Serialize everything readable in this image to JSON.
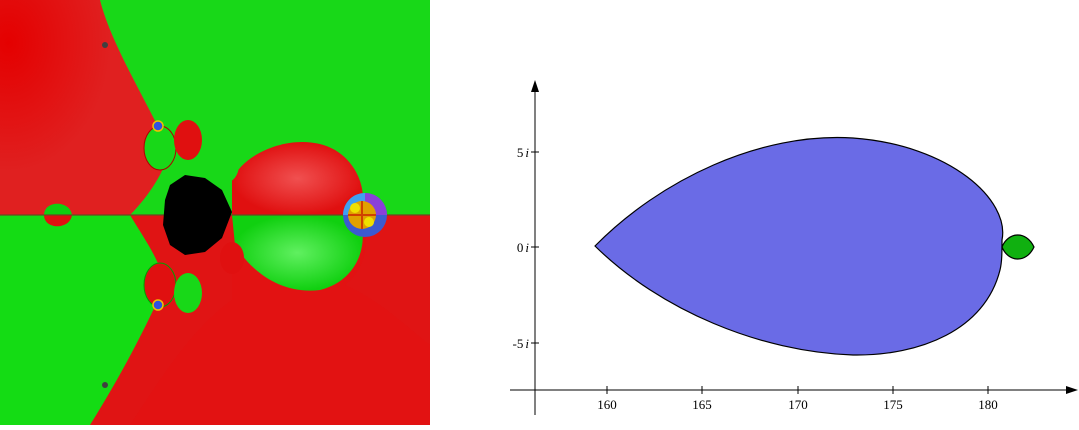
{
  "fractal": {
    "colors": {
      "red": "#e01010",
      "red_dark": "#c40000",
      "green": "#10dc10",
      "green_dark": "#00b400",
      "black": "#000000"
    }
  },
  "plot": {
    "x_ticks": [
      "160",
      "165",
      "170",
      "175",
      "180"
    ],
    "y_ticks": {
      "plus5": {
        "num": "5",
        "unit": "i"
      },
      "zero": {
        "num": "0",
        "unit": "i"
      },
      "minus5": {
        "num": "-5",
        "unit": "i"
      }
    },
    "colors": {
      "main_region": "#6a6be6",
      "small_region": "#10b010",
      "outline": "#000000"
    }
  }
}
